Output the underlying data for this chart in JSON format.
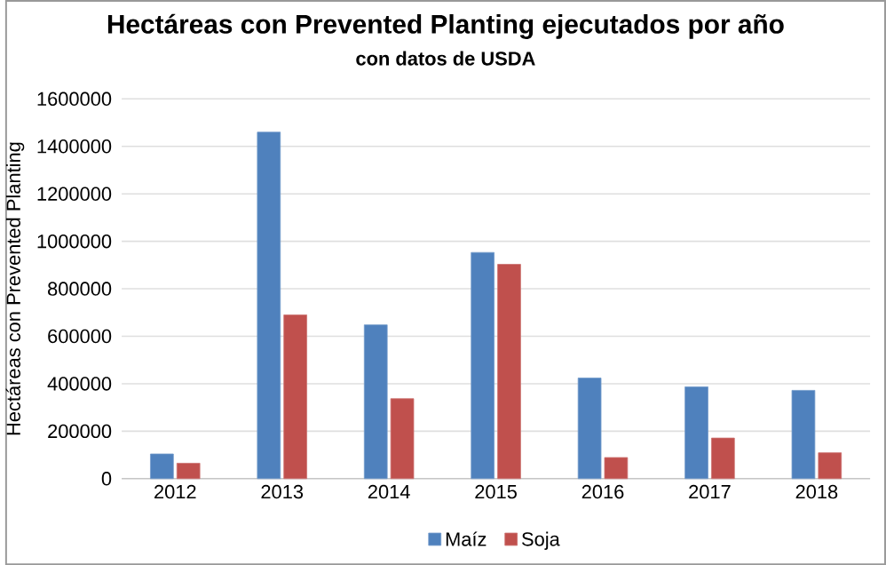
{
  "chart_data": {
    "type": "bar",
    "title": "Hectáreas con Prevented Planting ejecutados por año",
    "subtitle": "con datos de USDA",
    "ylabel": "Hectáreas con Prevented  Planting",
    "categories": [
      "2012",
      "2013",
      "2014",
      "2015",
      "2016",
      "2017",
      "2018"
    ],
    "series": [
      {
        "name": "Maíz",
        "color": "#4f81bd",
        "values": [
          104000,
          1460000,
          648000,
          953000,
          424000,
          387000,
          372000
        ]
      },
      {
        "name": "Soja",
        "color": "#c0504d",
        "values": [
          65000,
          690000,
          337000,
          903000,
          89000,
          171000,
          109000
        ]
      }
    ],
    "ylim": [
      0,
      1600000
    ],
    "yticks": [
      0,
      200000,
      400000,
      600000,
      800000,
      1000000,
      1200000,
      1400000,
      1600000
    ],
    "grid": "y",
    "legend": "bottom"
  }
}
